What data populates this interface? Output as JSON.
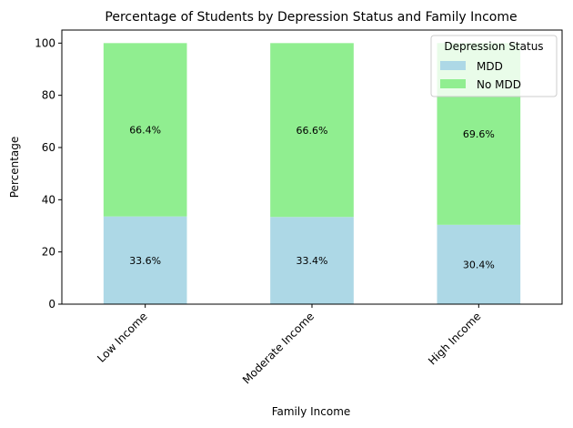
{
  "chart_data": {
    "type": "bar",
    "stacked": true,
    "title": "Percentage of Students by Depression Status and Family Income",
    "xlabel": "Family Income",
    "ylabel": "Percentage",
    "categories": [
      "Low Income",
      "Moderate Income",
      "High Income"
    ],
    "series": [
      {
        "name": "MDD",
        "values": [
          33.6,
          33.4,
          30.4
        ],
        "labels": [
          "33.6%",
          "33.4%",
          "30.4%"
        ],
        "color": "#add8e6"
      },
      {
        "name": "No MDD",
        "values": [
          66.4,
          66.6,
          69.6
        ],
        "labels": [
          "66.4%",
          "66.6%",
          "69.6%"
        ],
        "color": "#90ee90"
      }
    ],
    "ylim": [
      0,
      105
    ],
    "yticks": [
      0,
      20,
      40,
      60,
      80,
      100
    ],
    "grid": false,
    "legend": {
      "title": "Depression Status",
      "position": "top-right"
    }
  }
}
